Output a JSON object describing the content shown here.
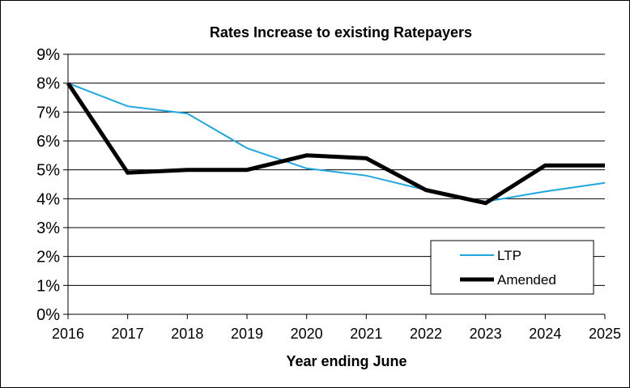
{
  "chart_data": {
    "type": "line",
    "title": "Rates Increase to existing Ratepayers",
    "xlabel": "Year ending June",
    "ylabel": "",
    "x": [
      "2016",
      "2017",
      "2018",
      "2019",
      "2020",
      "2021",
      "2022",
      "2023",
      "2024",
      "2025"
    ],
    "ylim": [
      0,
      9
    ],
    "yticks": [
      "0%",
      "1%",
      "2%",
      "3%",
      "4%",
      "5%",
      "6%",
      "7%",
      "8%",
      "9%"
    ],
    "grid": true,
    "legend_position": "bottom-right",
    "series": [
      {
        "name": "LTP",
        "color": "#1fa7e0",
        "values": [
          8.0,
          7.2,
          6.95,
          5.75,
          5.05,
          4.8,
          4.3,
          3.9,
          4.25,
          4.55
        ]
      },
      {
        "name": "Amended",
        "color": "#000000",
        "values": [
          8.0,
          4.9,
          5.0,
          5.0,
          5.5,
          5.4,
          4.3,
          3.85,
          5.15,
          5.15
        ]
      }
    ]
  }
}
